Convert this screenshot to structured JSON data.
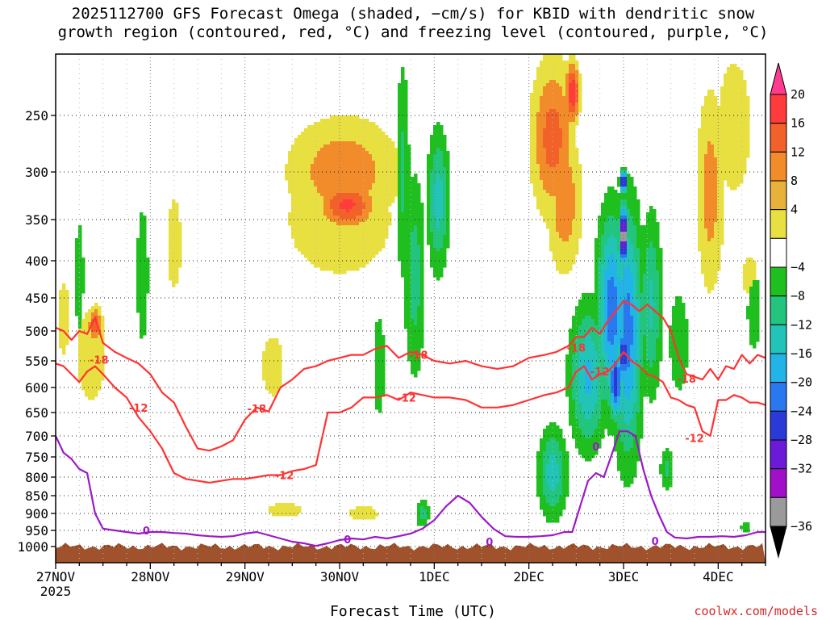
{
  "title_line1": "2025112700 GFS Forecast Omega (shaded, −cm/s) for KBID with dendritic snow",
  "title_line2": "growth region (contoured, red, °C) and freezing level (contoured, purple, °C)",
  "xaxis_title": "Forecast Time (UTC)",
  "credit": "coolwx.com/models",
  "colors": {
    "dgz_contour": "#ff3333",
    "freezing_contour": "#9b19c9",
    "terrain": "#a0522d",
    "grid": "#222222"
  },
  "chart_data": {
    "type": "heatmap",
    "title": "2025112700 GFS Forecast Omega (shaded, −cm/s) for KBID with dendritic snow growth region (contoured, red, °C) and freezing level (contoured, purple, °C)",
    "xlabel": "Forecast Time (UTC)",
    "ylabel": "",
    "x_range_hours": [
      0,
      180
    ],
    "y_range_hPa": [
      200,
      1030
    ],
    "y_ticks": [
      250,
      300,
      350,
      400,
      450,
      500,
      550,
      600,
      650,
      700,
      750,
      800,
      850,
      900,
      950,
      1000
    ],
    "x_ticks": [
      {
        "h": 0,
        "label": "27NOV",
        "sub": "2025"
      },
      {
        "h": 24,
        "label": "28NOV",
        "sub": ""
      },
      {
        "h": 48,
        "label": "29NOV",
        "sub": ""
      },
      {
        "h": 72,
        "label": "30NOV",
        "sub": ""
      },
      {
        "h": 96,
        "label": "1DEC",
        "sub": ""
      },
      {
        "h": 120,
        "label": "2DEC",
        "sub": ""
      },
      {
        "h": 144,
        "label": "3DEC",
        "sub": ""
      },
      {
        "h": 168,
        "label": "4DEC",
        "sub": ""
      }
    ],
    "grid": true,
    "colorbar": {
      "labels": [
        "20",
        "16",
        "12",
        "8",
        "4",
        "−4",
        "−8",
        "−12",
        "−16",
        "−20",
        "−24",
        "−28",
        "−32",
        "−36"
      ],
      "colors": [
        "#ff3b8f",
        "#ff3b3b",
        "#f2612a",
        "#f28b2a",
        "#e8b23a",
        "#e8e040",
        "#ffffff",
        "#1fbf1f",
        "#22c47e",
        "#22c4b8",
        "#22b4e6",
        "#2a78f0",
        "#2a3ad8",
        "#6a1ad8",
        "#a010c8",
        "#9a9a9a",
        "#000000"
      ]
    },
    "omega_blobs": [
      {
        "h": 74,
        "p": 335,
        "rh": 8,
        "rp": 55,
        "v": 17
      },
      {
        "h": 73,
        "p": 300,
        "rh": 16,
        "rp": 120,
        "v": 11
      },
      {
        "h": 72,
        "p": 350,
        "rh": 22,
        "rp": 200,
        "v": 6
      },
      {
        "h": 10,
        "p": 490,
        "rh": 2,
        "rp": 60,
        "v": 15
      },
      {
        "h": 9,
        "p": 540,
        "rh": 6,
        "rp": 260,
        "v": 6
      },
      {
        "h": 2,
        "p": 480,
        "rh": 3,
        "rp": 250,
        "v": 5
      },
      {
        "h": 30,
        "p": 380,
        "rh": 4,
        "rp": 240,
        "v": 5
      },
      {
        "h": 55,
        "p": 560,
        "rh": 6,
        "rp": 240,
        "v": 5
      },
      {
        "h": 58,
        "p": 890,
        "rh": 7,
        "rp": 70,
        "v": 6
      },
      {
        "h": 78,
        "p": 900,
        "rh": 6,
        "rp": 70,
        "v": 6
      },
      {
        "h": 126,
        "p": 270,
        "rh": 6,
        "rp": 160,
        "v": 14
      },
      {
        "h": 131,
        "p": 230,
        "rh": 2,
        "rp": 60,
        "v": 19
      },
      {
        "h": 129,
        "p": 330,
        "rh": 5,
        "rp": 170,
        "v": 11
      },
      {
        "h": 166,
        "p": 320,
        "rh": 4,
        "rp": 240,
        "v": 10
      },
      {
        "h": 172,
        "p": 260,
        "rh": 7,
        "rp": 200,
        "v": 6
      },
      {
        "h": 176,
        "p": 420,
        "rh": 3,
        "rp": 90,
        "v": 6
      },
      {
        "h": 88,
        "p": 300,
        "rh": 2,
        "rp": 260,
        "v": -9
      },
      {
        "h": 91,
        "p": 420,
        "rh": 3,
        "rp": 300,
        "v": -10
      },
      {
        "h": 97,
        "p": 330,
        "rh": 3,
        "rp": 160,
        "v": -14
      },
      {
        "h": 93,
        "p": 900,
        "rh": 2,
        "rp": 90,
        "v": -10
      },
      {
        "h": 82,
        "p": 560,
        "rh": 2,
        "rp": 250,
        "v": -7
      },
      {
        "h": 22,
        "p": 420,
        "rh": 2,
        "rp": 250,
        "v": -7
      },
      {
        "h": 6,
        "p": 420,
        "rh": 1.5,
        "rp": 200,
        "v": -7
      },
      {
        "h": 126,
        "p": 790,
        "rh": 4,
        "rp": 250,
        "v": -14
      },
      {
        "h": 135,
        "p": 580,
        "rh": 5,
        "rp": 280,
        "v": -17
      },
      {
        "h": 141,
        "p": 470,
        "rh": 4,
        "rp": 300,
        "v": -23
      },
      {
        "h": 142,
        "p": 590,
        "rh": 2,
        "rp": 150,
        "v": -28
      },
      {
        "h": 145,
        "p": 500,
        "rh": 4,
        "rp": 400,
        "v": -22
      },
      {
        "h": 144,
        "p": 540,
        "rh": 1.6,
        "rp": 120,
        "v": -29
      },
      {
        "h": 144,
        "p": 370,
        "rh": 1.2,
        "rp": 80,
        "v": -38
      },
      {
        "h": 144,
        "p": 310,
        "rh": 1,
        "rp": 25,
        "v": -33
      },
      {
        "h": 151,
        "p": 460,
        "rh": 3,
        "rp": 280,
        "v": -13
      },
      {
        "h": 158,
        "p": 520,
        "rh": 3,
        "rp": 200,
        "v": -8
      },
      {
        "h": 155,
        "p": 780,
        "rh": 2,
        "rp": 120,
        "v": -9
      },
      {
        "h": 177,
        "p": 470,
        "rh": 2,
        "rp": 150,
        "v": -8
      },
      {
        "h": 175,
        "p": 940,
        "rh": 1.5,
        "rp": 40,
        "v": -8
      }
    ],
    "series": [
      {
        "name": "-18",
        "color": "#ff3333",
        "x": [
          0,
          2,
          4,
          6,
          8,
          10,
          12,
          15,
          18,
          21,
          24,
          27,
          30,
          33,
          36,
          39,
          42,
          45,
          48,
          51,
          54,
          57,
          60,
          63,
          66,
          69,
          72,
          75,
          78,
          81,
          84,
          87,
          90,
          93,
          96,
          100,
          104,
          108,
          112,
          116,
          120,
          124,
          127,
          130,
          132,
          134,
          136,
          138,
          140,
          142,
          144,
          146,
          148,
          150,
          152,
          154,
          156,
          158,
          160,
          162,
          164,
          166,
          168,
          170,
          172,
          174,
          176,
          178,
          180
        ],
        "y": [
          495,
          500,
          515,
          500,
          505,
          480,
          520,
          535,
          545,
          555,
          575,
          610,
          630,
          680,
          730,
          735,
          725,
          710,
          665,
          640,
          648,
          600,
          585,
          565,
          560,
          550,
          545,
          540,
          540,
          530,
          525,
          545,
          535,
          540,
          550,
          555,
          550,
          560,
          565,
          560,
          545,
          540,
          535,
          525,
          510,
          510,
          495,
          505,
          485,
          470,
          455,
          460,
          470,
          460,
          470,
          480,
          500,
          545,
          575,
          580,
          585,
          565,
          585,
          560,
          565,
          540,
          555,
          540,
          545
        ],
        "label_pos": [
          [
            11,
            548
          ],
          [
            51,
            642
          ],
          [
            92,
            540
          ],
          [
            132,
            528
          ],
          [
            160,
            583
          ]
        ]
      },
      {
        "name": "-12",
        "color": "#ff3333",
        "x": [
          0,
          2,
          4,
          6,
          8,
          10,
          12,
          15,
          18,
          21,
          24,
          27,
          30,
          33,
          36,
          39,
          42,
          45,
          48,
          51,
          54,
          57,
          60,
          63,
          66,
          69,
          72,
          75,
          78,
          81,
          84,
          87,
          90,
          93,
          96,
          100,
          104,
          108,
          112,
          116,
          120,
          124,
          127,
          130,
          132,
          134,
          136,
          138,
          140,
          142,
          144,
          146,
          148,
          150,
          152,
          154,
          156,
          158,
          160,
          162,
          164,
          166,
          168,
          170,
          172,
          174,
          176,
          178,
          180
        ],
        "y": [
          555,
          560,
          575,
          590,
          570,
          560,
          575,
          600,
          620,
          660,
          690,
          730,
          790,
          805,
          810,
          815,
          810,
          805,
          805,
          800,
          795,
          795,
          785,
          780,
          770,
          650,
          650,
          640,
          620,
          620,
          615,
          625,
          610,
          615,
          620,
          620,
          625,
          640,
          640,
          635,
          625,
          615,
          610,
          600,
          570,
          560,
          585,
          575,
          570,
          555,
          535,
          550,
          560,
          575,
          580,
          590,
          620,
          625,
          635,
          640,
          690,
          700,
          625,
          625,
          615,
          620,
          630,
          630,
          635
        ],
        "label_pos": [
          [
            21,
            640
          ],
          [
            58,
            795
          ],
          [
            89,
            620
          ],
          [
            138,
            570
          ],
          [
            162,
            705
          ]
        ]
      },
      {
        "name": "0",
        "color": "#9b19c9",
        "x": [
          0,
          2,
          4,
          6,
          8,
          10,
          12,
          15,
          18,
          21,
          24,
          27,
          30,
          33,
          36,
          39,
          42,
          45,
          48,
          51,
          54,
          57,
          60,
          63,
          66,
          69,
          72,
          75,
          78,
          81,
          84,
          87,
          90,
          93,
          96,
          99,
          102,
          105,
          108,
          111,
          114,
          117,
          120,
          123,
          126,
          129,
          131,
          133,
          135,
          137,
          139,
          141,
          143,
          145,
          147,
          149,
          151,
          153,
          155,
          157,
          160,
          163,
          166,
          169,
          172,
          175,
          178,
          180
        ],
        "y": [
          700,
          740,
          755,
          780,
          790,
          900,
          945,
          950,
          955,
          960,
          955,
          955,
          958,
          960,
          965,
          968,
          970,
          968,
          960,
          955,
          965,
          975,
          985,
          990,
          998,
          990,
          980,
          975,
          978,
          970,
          975,
          968,
          960,
          945,
          920,
          880,
          850,
          870,
          910,
          945,
          968,
          970,
          970,
          968,
          965,
          955,
          955,
          880,
          810,
          790,
          800,
          745,
          690,
          690,
          700,
          780,
          850,
          905,
          955,
          972,
          975,
          970,
          970,
          968,
          970,
          965,
          955,
          955
        ],
        "label_pos": [
          [
            23,
            950
          ],
          [
            74,
            978
          ],
          [
            110,
            985
          ],
          [
            137,
            725
          ],
          [
            152,
            983
          ]
        ]
      }
    ]
  }
}
